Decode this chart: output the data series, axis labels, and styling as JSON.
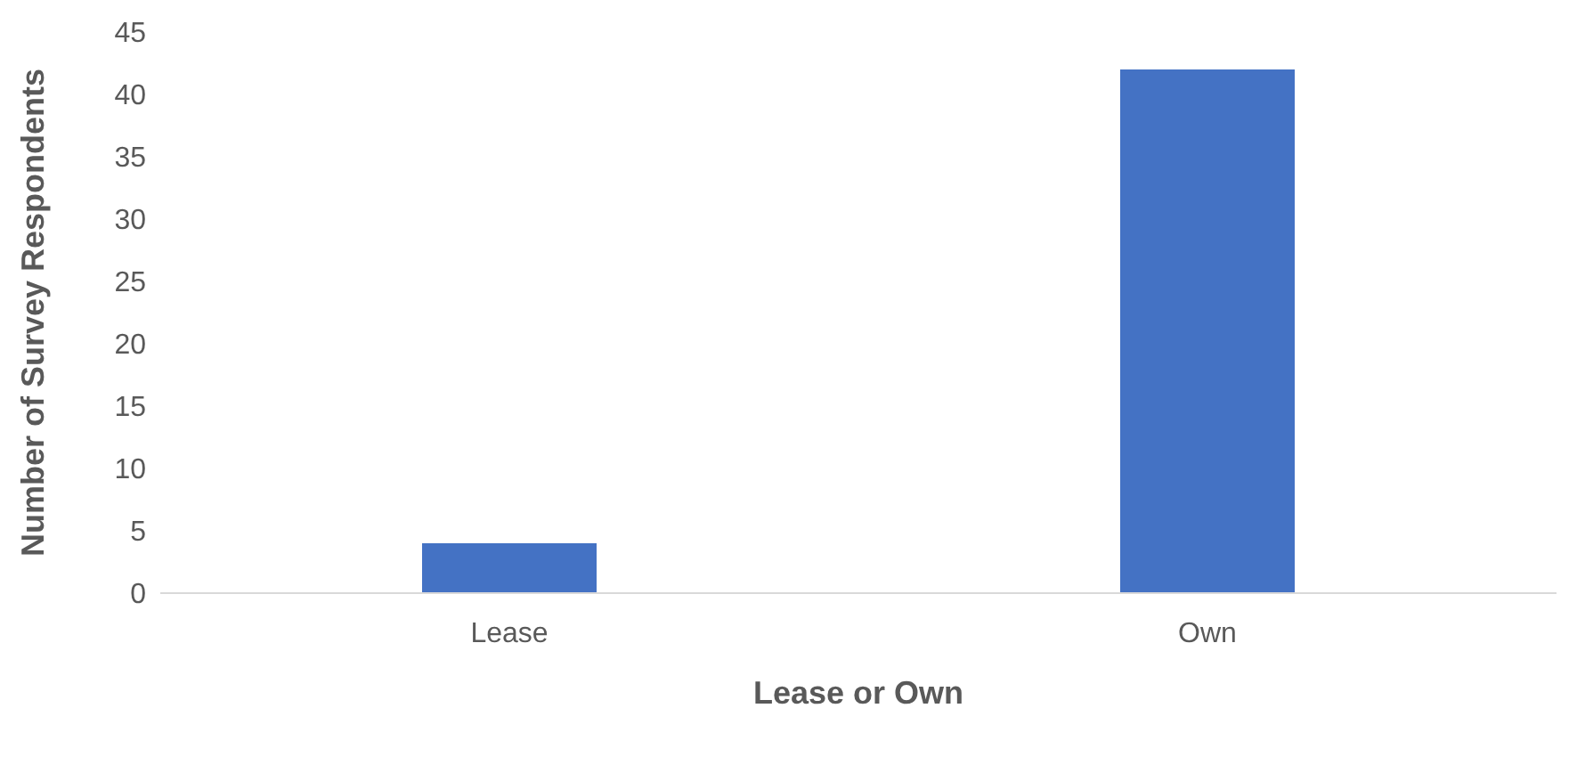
{
  "chart_data": {
    "type": "bar",
    "xlabel": "Lease or Own",
    "ylabel": "Number of Survey Respondents",
    "categories": [
      "Lease",
      "Own"
    ],
    "values": [
      4,
      42
    ],
    "color": "#4472c4",
    "ylim": [
      0,
      45
    ],
    "yticks": [
      0,
      5,
      10,
      15,
      20,
      25,
      30,
      35,
      40,
      45
    ],
    "grid": false,
    "legend": false
  }
}
